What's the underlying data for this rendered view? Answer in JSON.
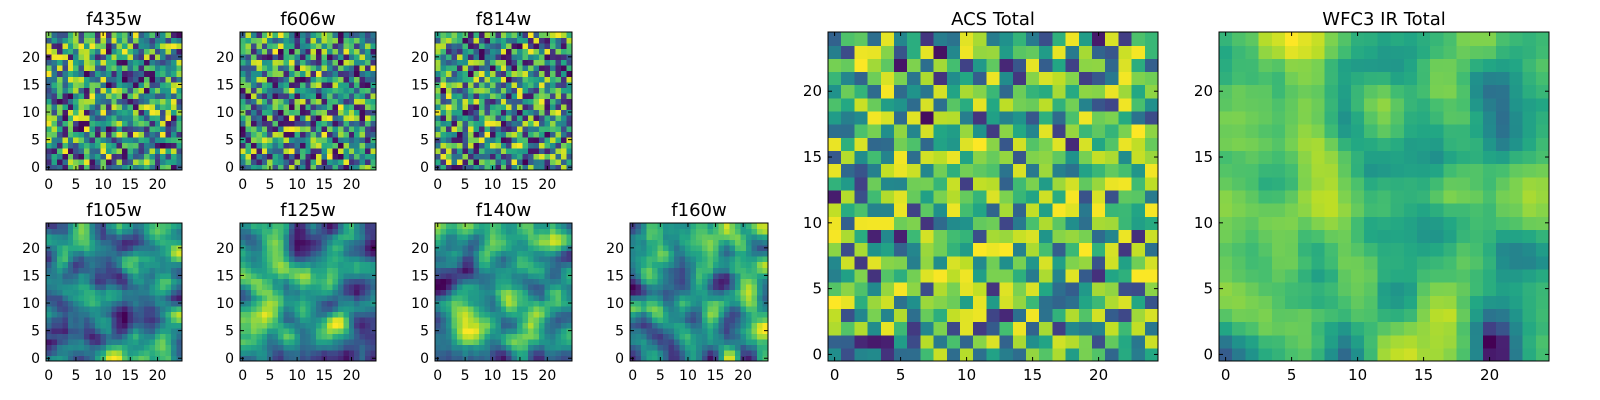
{
  "figure_title": "",
  "chart_data": [
    {
      "type": "heatmap",
      "title": "f435w",
      "grid": 25,
      "xlim": [
        -0.5,
        24.5
      ],
      "ylim": [
        -0.5,
        24.5
      ],
      "xticks": [
        0,
        5,
        10,
        15,
        20
      ],
      "yticks": [
        0,
        5,
        10,
        15,
        20
      ],
      "pattern": "noisy",
      "seed": 11,
      "colormap": "viridis"
    },
    {
      "type": "heatmap",
      "title": "f606w",
      "grid": 25,
      "xlim": [
        -0.5,
        24.5
      ],
      "ylim": [
        -0.5,
        24.5
      ],
      "xticks": [
        0,
        5,
        10,
        15,
        20
      ],
      "yticks": [
        0,
        5,
        10,
        15,
        20
      ],
      "pattern": "noisy",
      "seed": 23,
      "colormap": "viridis"
    },
    {
      "type": "heatmap",
      "title": "f814w",
      "grid": 25,
      "xlim": [
        -0.5,
        24.5
      ],
      "ylim": [
        -0.5,
        24.5
      ],
      "xticks": [
        0,
        5,
        10,
        15,
        20
      ],
      "yticks": [
        0,
        5,
        10,
        15,
        20
      ],
      "pattern": "noisy",
      "seed": 37,
      "colormap": "viridis"
    },
    {
      "type": "heatmap",
      "title": "f105w",
      "grid": 25,
      "xlim": [
        -0.5,
        24.5
      ],
      "ylim": [
        -0.5,
        24.5
      ],
      "xticks": [
        0,
        5,
        10,
        15,
        20
      ],
      "yticks": [
        0,
        5,
        10,
        15,
        20
      ],
      "pattern": "smooth",
      "seed": 41,
      "colormap": "viridis"
    },
    {
      "type": "heatmap",
      "title": "f125w",
      "grid": 25,
      "xlim": [
        -0.5,
        24.5
      ],
      "ylim": [
        -0.5,
        24.5
      ],
      "xticks": [
        0,
        5,
        10,
        15,
        20
      ],
      "yticks": [
        0,
        5,
        10,
        15,
        20
      ],
      "pattern": "smooth",
      "seed": 53,
      "colormap": "viridis"
    },
    {
      "type": "heatmap",
      "title": "f140w",
      "grid": 25,
      "xlim": [
        -0.5,
        24.5
      ],
      "ylim": [
        -0.5,
        24.5
      ],
      "xticks": [
        0,
        5,
        10,
        15,
        20
      ],
      "yticks": [
        0,
        5,
        10,
        15,
        20
      ],
      "pattern": "smooth",
      "seed": 67,
      "colormap": "viridis"
    },
    {
      "type": "heatmap",
      "title": "f160w",
      "grid": 25,
      "xlim": [
        -0.5,
        24.5
      ],
      "ylim": [
        -0.5,
        24.5
      ],
      "xticks": [
        0,
        5,
        10,
        15,
        20
      ],
      "yticks": [
        0,
        5,
        10,
        15,
        20
      ],
      "pattern": "smooth",
      "seed": 79,
      "colormap": "viridis"
    },
    {
      "type": "heatmap",
      "title": "ACS Total",
      "grid": 25,
      "xlim": [
        -0.5,
        24.5
      ],
      "ylim": [
        -0.5,
        24.5
      ],
      "xticks": [
        0,
        5,
        10,
        15,
        20
      ],
      "yticks": [
        0,
        5,
        10,
        15,
        20
      ],
      "pattern": "noisy-bright",
      "seed": 97,
      "colormap": "viridis"
    },
    {
      "type": "heatmap",
      "title": "WFC3 IR Total",
      "grid": 25,
      "xlim": [
        -0.5,
        24.5
      ],
      "ylim": [
        -0.5,
        24.5
      ],
      "xticks": [
        0,
        5,
        10,
        15,
        20
      ],
      "yticks": [
        0,
        5,
        10,
        15,
        20
      ],
      "pattern": "smooth-bright",
      "seed": 131,
      "colormap": "viridis"
    }
  ],
  "colors": {
    "frame": "#000000",
    "background": "#ffffff"
  }
}
